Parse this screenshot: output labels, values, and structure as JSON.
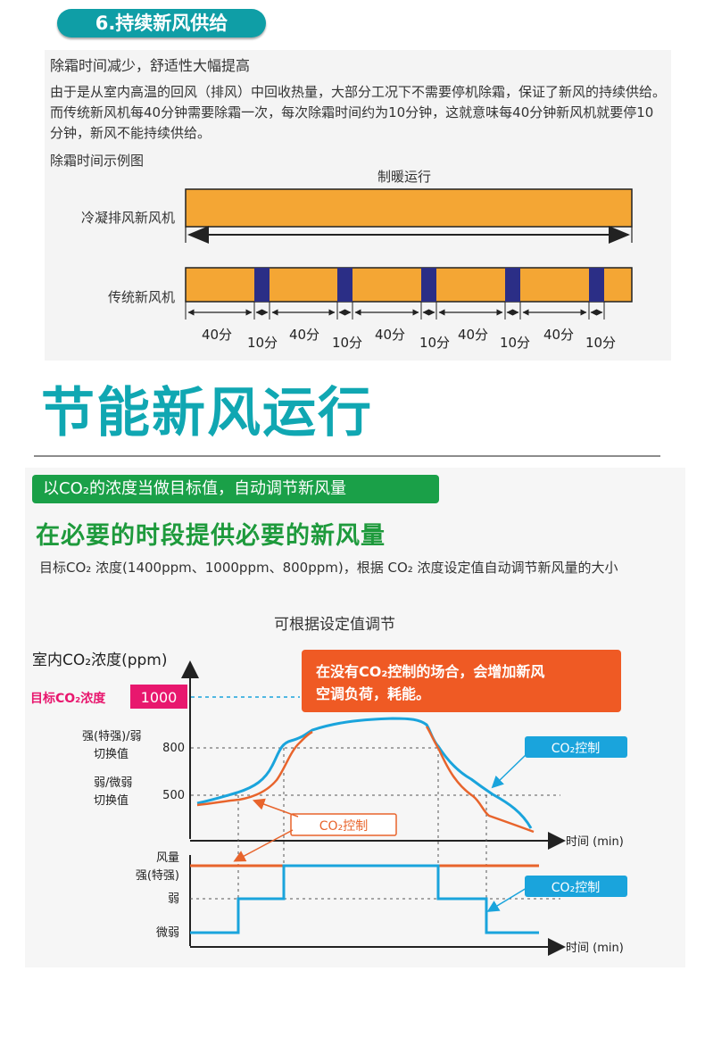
{
  "section1": {
    "badge": "6.持续新风供给",
    "heading": "除霜时间减少，舒适性大幅提高",
    "paragraph": "由于是从室内高温的回风（排风）中回收热量，大部分工况下不需要停机除霜，保证了新风的持续供给。而传统新风机每40分钟需要除霜一次，每次除霜时间约为10分钟，这就意味每40分钟新风机就要停10分钟，新风不能持续供给。",
    "caption": "除霜时间示例图",
    "diagram": {
      "top_label": "制暖运行",
      "row1_label": "冷凝排风新风机",
      "row2_label": "传统新风机",
      "run_label": "40分",
      "defrost_label": "10分",
      "colors": {
        "run": "#f4a634",
        "defrost": "#2b2e86"
      }
    }
  },
  "section2": {
    "title": "节能新风运行",
    "badge": "以CO₂的浓度当做目标值，自动调节新风量",
    "subtitle": "在必要的时段提供必要的新风量",
    "paragraph": "目标CO₂ 浓度(1400ppm、1000ppm、800ppm)，根据 CO₂ 浓度设定值自动调节新风量的大小"
  },
  "chart": {
    "title": "可根据设定值调节",
    "y_label": "室内CO₂浓度(ppm)",
    "target_label": "目标CO₂浓度",
    "target_value": "1000",
    "tick_800": "800",
    "tick_500": "500",
    "label_strong_switch": [
      "强(特强)/弱",
      "切换值"
    ],
    "label_weak_switch": [
      "弱/微弱",
      "切换值"
    ],
    "x_label": "时间 (min)",
    "callout": [
      "在没有CO₂控制的场合，会增加新风",
      "空调负荷，耗能。"
    ],
    "co2_tag_blue": "CO₂控制",
    "co2_tag_orange": "CO₂控制",
    "airflow_label": "风量",
    "level_strong": "强(特强)",
    "level_weak": "弱",
    "level_micro": "微弱",
    "x_label2": "时间 (min)",
    "colors": {
      "blue": "#1aa4dc",
      "orange": "#e8642c",
      "target": "#e8176e",
      "callout": "#ef5a24"
    }
  }
}
